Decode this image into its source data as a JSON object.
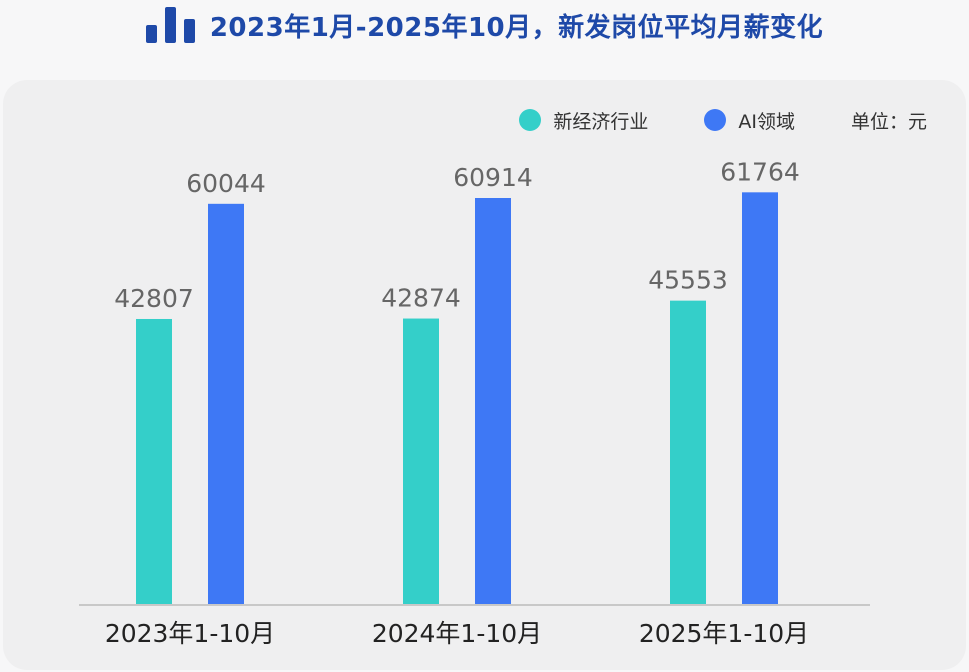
{
  "title": "2023年1月-2025年10月，新发岗位平均月薪变化",
  "icons": {
    "title": "bar-chart-icon"
  },
  "legend": {
    "unit": "单位：元"
  },
  "colors": {
    "title": "#1e49a8",
    "series_new_economy": "#34cfc9",
    "series_ai": "#3e78f5",
    "value_label": "#666666",
    "axis": "#c8c8c8"
  },
  "chart_data": {
    "type": "bar",
    "title": "2023年1月-2025年10月，新发岗位平均月薪变化",
    "categories": [
      "2023年1-10月",
      "2024年1-10月",
      "2025年1-10月"
    ],
    "series": [
      {
        "name": "新经济行业",
        "values": [
          42807,
          42874,
          45553
        ]
      },
      {
        "name": "AI领域",
        "values": [
          60044,
          60914,
          61764
        ]
      }
    ],
    "unit": "单位：元",
    "ylim": [
      0,
      67500
    ],
    "grid": false,
    "legend_position": "top-right",
    "data_labels": true
  }
}
